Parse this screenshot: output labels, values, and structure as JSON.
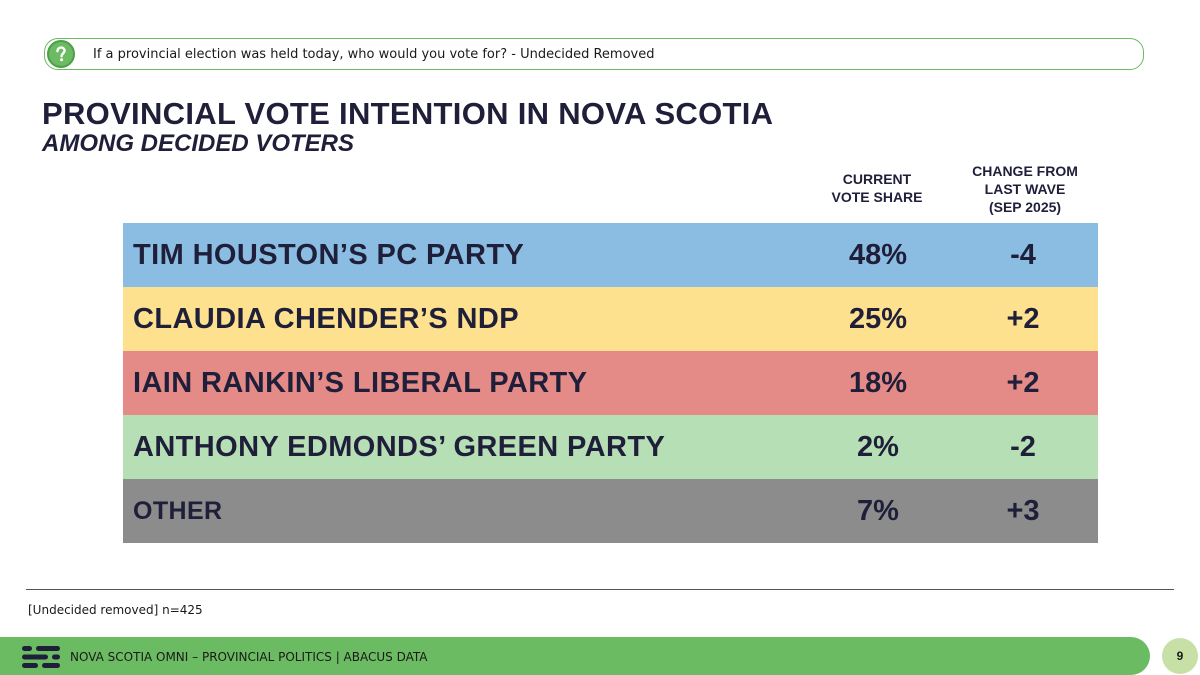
{
  "question": {
    "text": "If a provincial election was held today, who would you vote for? - Undecided Removed",
    "icon": "question-icon"
  },
  "title": "PROVINCIAL VOTE INTENTION IN NOVA SCOTIA",
  "subtitle": "AMONG DECIDED VOTERS",
  "chart_data": {
    "type": "table",
    "title": "PROVINCIAL VOTE INTENTION IN NOVA SCOTIA",
    "subtitle": "AMONG DECIDED VOTERS",
    "columns": [
      {
        "line1": "CURRENT",
        "line2": "VOTE SHARE",
        "line3": ""
      },
      {
        "line1": "CHANGE FROM",
        "line2": "LAST WAVE",
        "line3": "(SEP 2025)"
      }
    ],
    "rows": [
      {
        "label": "TIM HOUSTON’S PC PARTY",
        "share": "48%",
        "change": "-4",
        "color": "#8bbde3"
      },
      {
        "label": "CLAUDIA CHENDER’S NDP",
        "share": "25%",
        "change": "+2",
        "color": "#fde18e"
      },
      {
        "label": "IAIN RANKIN’S LIBERAL PARTY",
        "share": "18%",
        "change": "+2",
        "color": "#e48a87"
      },
      {
        "label": "ANTHONY EDMONDS’ GREEN PARTY",
        "share": "2%",
        "change": "-2",
        "color": "#b7dfb5"
      },
      {
        "label": "OTHER",
        "share": "7%",
        "change": "+3",
        "color": "#8c8c8c"
      }
    ]
  },
  "footnote": "[Undecided removed] n=425",
  "footer": {
    "text": "NOVA SCOTIA OMNI – PROVINCIAL POLITICS  |  ABACUS DATA",
    "page_number": "9",
    "accent": "#6bbb62"
  }
}
